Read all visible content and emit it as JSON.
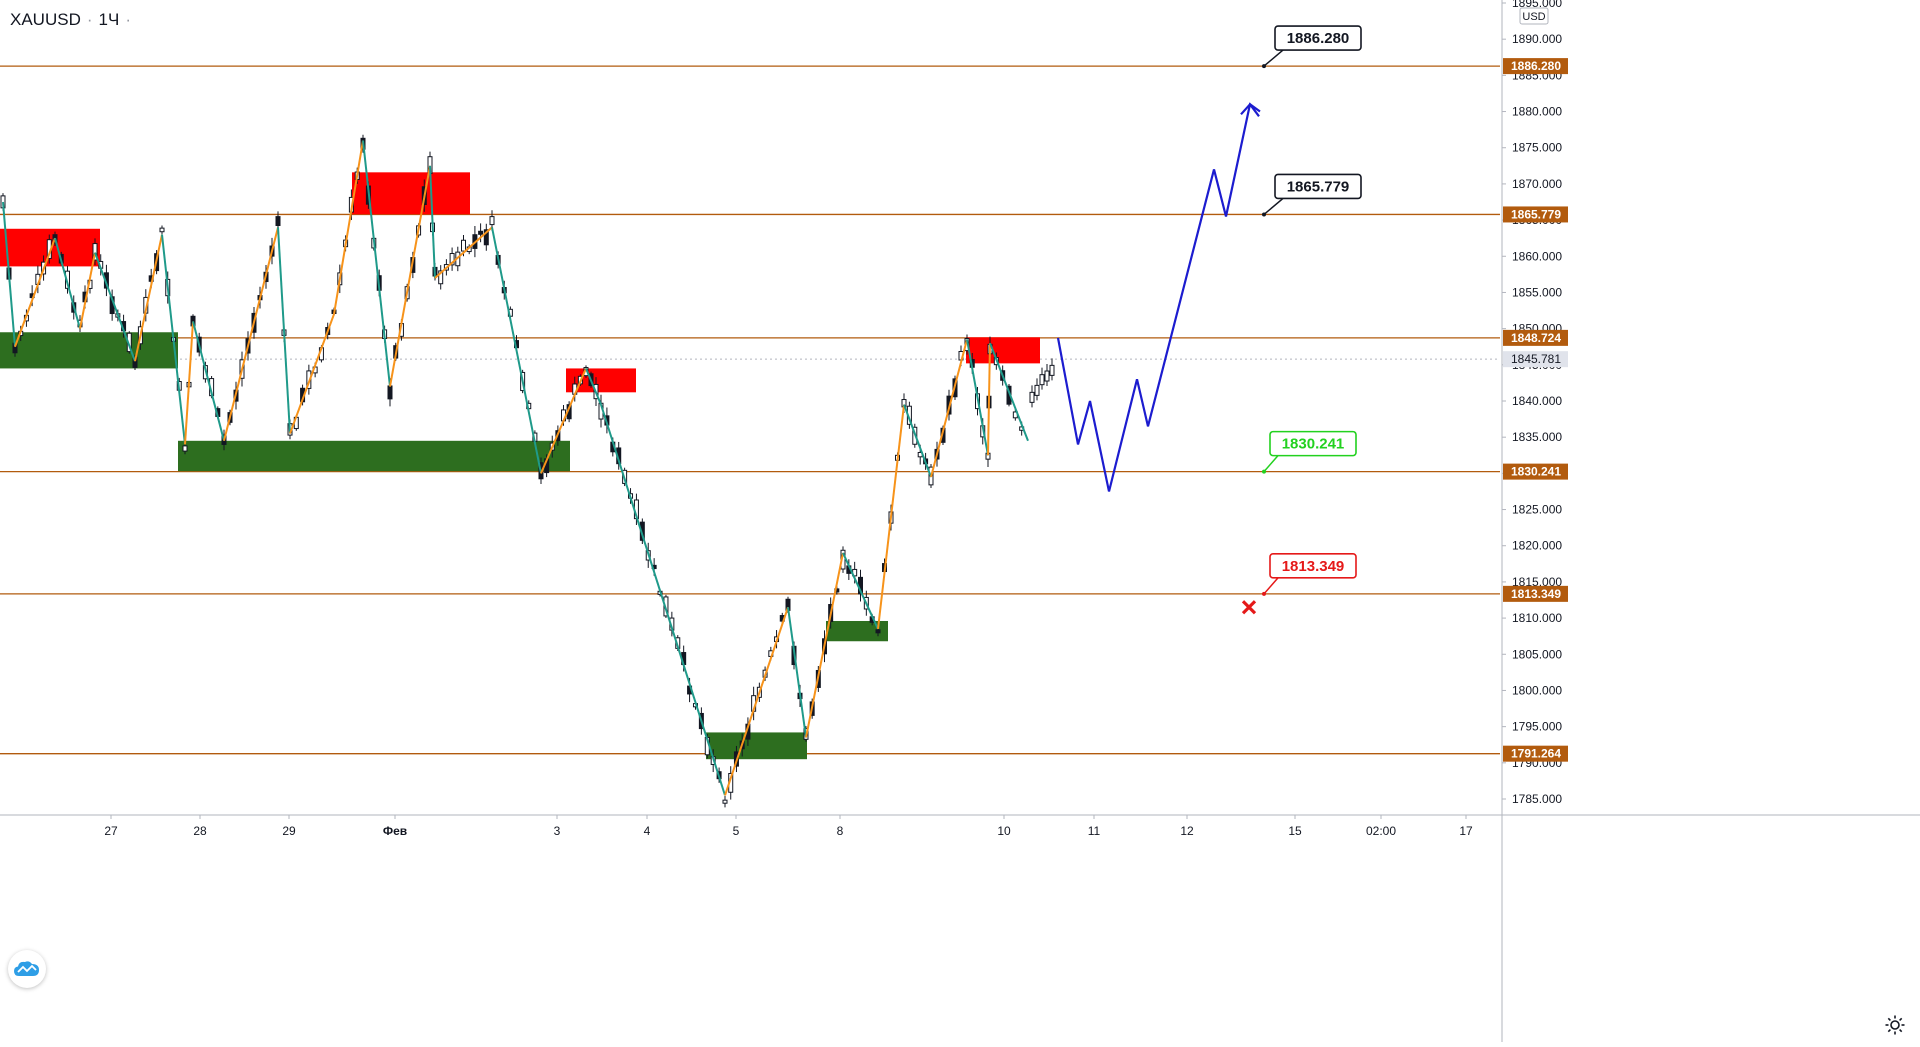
{
  "header": {
    "symbol": "XAUUSD",
    "separator": "·",
    "interval": "1Ч",
    "dot": "·"
  },
  "currency": "USD",
  "icons": {
    "logo": "tradingview-cloud-icon",
    "settings": "gear-icon",
    "invalidation": "cross-icon"
  },
  "colors": {
    "level_line": "#b25b0e",
    "level_badge": "#b25b0e",
    "current_price_badge": "#e0e3eb",
    "supply_zone": "#ff0000",
    "demand_zone": "#2d6e1f",
    "zigzag_up": "#f7931a",
    "zigzag_down": "#1f9a8a",
    "projection": "#1c1ccf",
    "candle": "#131722"
  },
  "chart_data": {
    "type": "candlestick",
    "instrument": "XAUUSD",
    "timeframe": "1Ч",
    "y_axis": {
      "min": 1783,
      "max": 1895,
      "ticks": [
        1785,
        1790,
        1795,
        1800,
        1805,
        1810,
        1815,
        1820,
        1825,
        1830,
        1835,
        1840,
        1845,
        1850,
        1855,
        1860,
        1865,
        1870,
        1875,
        1880,
        1885,
        1890,
        1895
      ],
      "tick_labels": [
        "1785.000",
        "1790.000",
        "1795.000",
        "1800.000",
        "1805.000",
        "1810.000",
        "1815.000",
        "1820.000",
        "1825.000",
        "1830.000",
        "1835.000",
        "1840.000",
        "1845.000",
        "1850.000",
        "1855.000",
        "1860.000",
        "1865.000",
        "1870.000",
        "1875.000",
        "1880.000",
        "1885.000",
        "1890.000",
        "1895.000"
      ]
    },
    "x_axis": {
      "tick_labels": [
        "27",
        "28",
        "29",
        "Фев",
        "3",
        "4",
        "5",
        "8",
        "10",
        "11",
        "12",
        "15",
        "02:00",
        "17"
      ]
    },
    "current_price": {
      "value": 1845.781,
      "label": "1845.781"
    },
    "levels": [
      {
        "value": 1886.28,
        "label": "1886.280"
      },
      {
        "value": 1865.779,
        "label": "1865.779"
      },
      {
        "value": 1848.724,
        "label": "1848.724"
      },
      {
        "value": 1830.241,
        "label": "1830.241"
      },
      {
        "value": 1813.349,
        "label": "1813.349"
      },
      {
        "value": 1791.264,
        "label": "1791.264"
      }
    ],
    "callouts": [
      {
        "label": "1886.280",
        "value": 1886.28,
        "style": "target"
      },
      {
        "label": "1865.779",
        "value": 1865.779,
        "style": "target"
      },
      {
        "label": "1830.241",
        "value": 1830.241,
        "style": "entry"
      },
      {
        "label": "1813.349",
        "value": 1813.349,
        "style": "stop"
      }
    ],
    "supply_zones": [
      {
        "hi": 1863.8,
        "lo": 1858.6
      },
      {
        "hi": 1871.6,
        "lo": 1865.8
      },
      {
        "hi": 1844.5,
        "lo": 1841.2
      },
      {
        "hi": 1848.8,
        "lo": 1845.2
      }
    ],
    "demand_zones": [
      {
        "hi": 1849.5,
        "lo": 1844.5
      },
      {
        "hi": 1834.5,
        "lo": 1830.3
      },
      {
        "hi": 1809.6,
        "lo": 1806.8
      },
      {
        "hi": 1794.2,
        "lo": 1790.5
      }
    ],
    "zigzag_points": [
      1867.5,
      1847.5,
      1862.5,
      1850.0,
      1860.5,
      1849.5,
      1844.5,
      1863.0,
      1848.5,
      1834.0,
      1851.0,
      1834.5,
      1864.0,
      1835.5,
      1850.0,
      1839.5,
      1852.0,
      1876.0,
      1842.0,
      1872.5,
      1842.5,
      1857.0,
      1864.0,
      1849.5,
      1830.0,
      1844.5,
      1830.5,
      1843.0,
      1785.5,
      1811.5,
      1793.5,
      1819.0,
      1808.5,
      1839.5,
      1829.5,
      1848.5,
      1832.5,
      1848.0,
      1834.5
    ],
    "projection_points": [
      1848.724,
      1834.0,
      1840.0,
      1827.5,
      1843.0,
      1836.5,
      1872.0,
      1865.5,
      1881.0,
      1880.0
    ]
  }
}
